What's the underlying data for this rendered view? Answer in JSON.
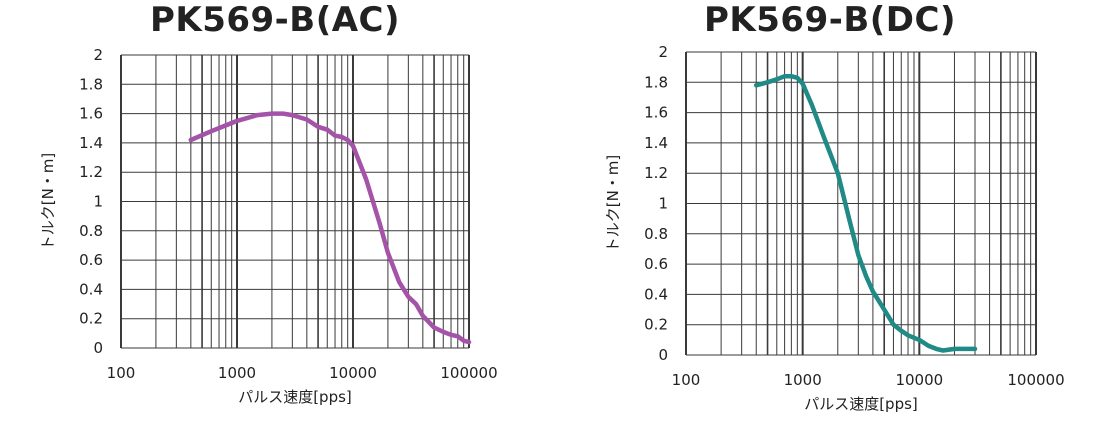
{
  "chart_data": [
    {
      "type": "line",
      "title": "PK569-B(AC)",
      "xlabel": "パルス速度[pps]",
      "ylabel": "トルク[N・m]",
      "x_scale": "log",
      "xlim": [
        100,
        100000
      ],
      "ylim": [
        0,
        2
      ],
      "xticks": [
        100,
        1000,
        10000,
        100000
      ],
      "xtick_labels": [
        "100",
        "1000",
        "10000",
        "100000"
      ],
      "yticks": [
        0,
        0.2,
        0.4,
        0.6,
        0.8,
        1,
        1.2,
        1.4,
        1.6,
        1.8,
        2
      ],
      "ytick_labels": [
        "0",
        "0.2",
        "0.4",
        "0.6",
        "0.8",
        "1",
        "1.2",
        "1.4",
        "1.6",
        "1.8",
        "2"
      ],
      "grid": true,
      "color": "#a453a8",
      "series": [
        {
          "x": [
            400,
            600,
            1000,
            1500,
            2000,
            2500,
            3000,
            4000,
            5000,
            6000,
            7000,
            8000,
            9000,
            10000,
            13000,
            17000,
            20000,
            25000,
            30000,
            35000,
            40000,
            50000,
            60000,
            70000,
            80000,
            90000,
            100000
          ],
          "y": [
            1.42,
            1.48,
            1.55,
            1.59,
            1.6,
            1.6,
            1.59,
            1.56,
            1.51,
            1.49,
            1.45,
            1.44,
            1.42,
            1.38,
            1.15,
            0.85,
            0.65,
            0.45,
            0.35,
            0.3,
            0.22,
            0.14,
            0.11,
            0.09,
            0.08,
            0.05,
            0.04
          ]
        }
      ]
    },
    {
      "type": "line",
      "title": "PK569-B(DC)",
      "xlabel": "パルス速度[pps]",
      "ylabel": "トルク[N・m]",
      "x_scale": "log",
      "xlim": [
        100,
        100000
      ],
      "ylim": [
        0,
        2
      ],
      "xticks": [
        100,
        1000,
        10000,
        100000
      ],
      "xtick_labels": [
        "100",
        "1000",
        "10000",
        "100000"
      ],
      "yticks": [
        0,
        0.2,
        0.4,
        0.6,
        0.8,
        1,
        1.2,
        1.4,
        1.6,
        1.8,
        2
      ],
      "ytick_labels": [
        "0",
        "0.2",
        "0.4",
        "0.6",
        "0.8",
        "1",
        "1.2",
        "1.4",
        "1.6",
        "1.8",
        "2"
      ],
      "grid": true,
      "color": "#208a86",
      "series": [
        {
          "x": [
            400,
            500,
            600,
            700,
            800,
            900,
            1000,
            1200,
            1500,
            2000,
            2500,
            3000,
            3500,
            4000,
            5000,
            6000,
            7000,
            8000,
            10000,
            12000,
            14000,
            16000,
            20000,
            25000,
            30000
          ],
          "y": [
            1.78,
            1.8,
            1.82,
            1.84,
            1.84,
            1.83,
            1.79,
            1.65,
            1.45,
            1.2,
            0.9,
            0.66,
            0.52,
            0.42,
            0.3,
            0.2,
            0.16,
            0.13,
            0.1,
            0.06,
            0.04,
            0.03,
            0.04,
            0.04,
            0.04
          ]
        }
      ]
    }
  ]
}
